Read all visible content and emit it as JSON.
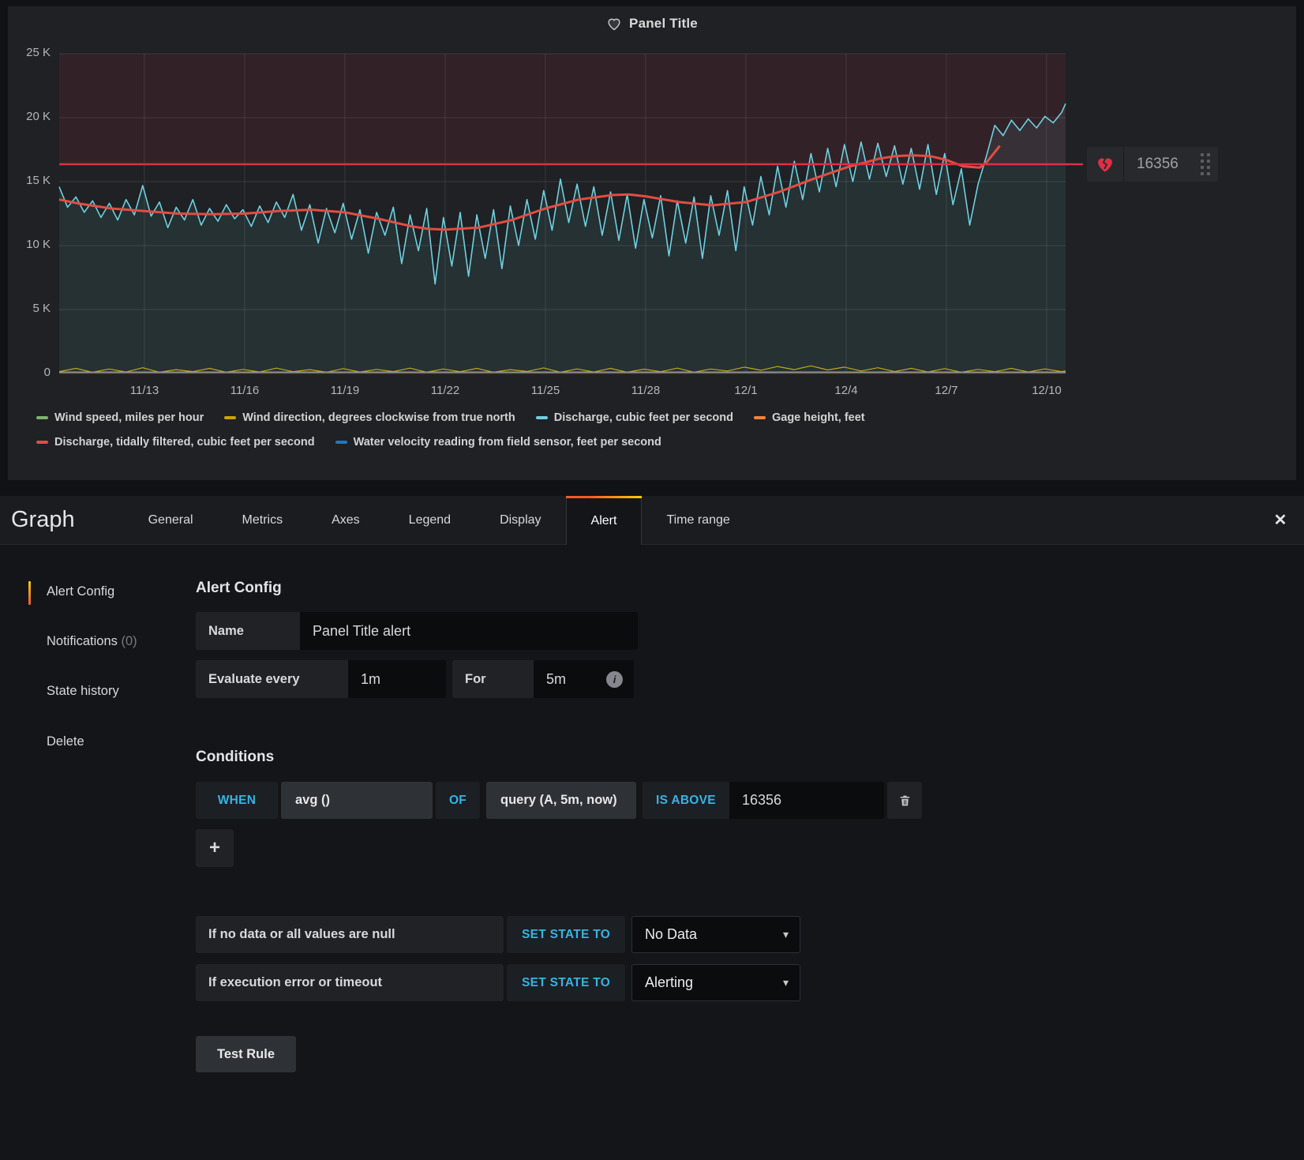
{
  "panel": {
    "title": "Panel Title"
  },
  "chart_data": {
    "type": "line",
    "title": "Panel Title",
    "x_axis": {
      "ticks": [
        "11/13",
        "11/16",
        "11/19",
        "11/22",
        "11/25",
        "11/28",
        "12/1",
        "12/4",
        "12/7",
        "12/10"
      ],
      "tick_days": [
        3,
        6,
        9,
        12,
        15,
        18,
        21,
        24,
        27,
        30
      ],
      "domain_days": [
        0.45,
        30.57
      ]
    },
    "y_axis": {
      "ticks": [
        "0",
        "5 K",
        "10 K",
        "15 K",
        "20 K",
        "25 K"
      ],
      "values": [
        0,
        5,
        10,
        15,
        20,
        25
      ],
      "ylim": [
        0,
        25
      ]
    },
    "unit": "K (thousands)",
    "grid": true,
    "legend_position": "bottom",
    "threshold": {
      "value": 16.356,
      "label": "16356",
      "color": "#e02f44"
    },
    "series": [
      {
        "name": "Wind speed, miles per hour",
        "color": "#7eb26d",
        "width": 1.2,
        "points": [
          [
            0.45,
            0.08
          ],
          [
            30.57,
            0.08
          ]
        ]
      },
      {
        "name": "Wind direction, degrees clockwise from true north",
        "color": "#cca300",
        "width": 1.2,
        "points": [
          [
            0.45,
            0.15
          ],
          [
            0.95,
            0.4
          ],
          [
            1.45,
            0.1
          ],
          [
            1.95,
            0.35
          ],
          [
            2.45,
            0.12
          ],
          [
            2.95,
            0.45
          ],
          [
            3.45,
            0.1
          ],
          [
            3.95,
            0.3
          ],
          [
            4.45,
            0.15
          ],
          [
            4.95,
            0.4
          ],
          [
            5.45,
            0.1
          ],
          [
            5.95,
            0.32
          ],
          [
            6.45,
            0.12
          ],
          [
            6.95,
            0.42
          ],
          [
            7.45,
            0.14
          ],
          [
            7.95,
            0.3
          ],
          [
            8.45,
            0.1
          ],
          [
            8.95,
            0.38
          ],
          [
            9.45,
            0.12
          ],
          [
            9.95,
            0.32
          ],
          [
            10.45,
            0.15
          ],
          [
            10.95,
            0.42
          ],
          [
            11.45,
            0.1
          ],
          [
            11.95,
            0.35
          ],
          [
            12.45,
            0.14
          ],
          [
            12.95,
            0.4
          ],
          [
            13.45,
            0.1
          ],
          [
            13.95,
            0.3
          ],
          [
            14.45,
            0.16
          ],
          [
            14.95,
            0.44
          ],
          [
            15.45,
            0.1
          ],
          [
            15.95,
            0.36
          ],
          [
            16.45,
            0.12
          ],
          [
            16.95,
            0.4
          ],
          [
            17.45,
            0.1
          ],
          [
            17.95,
            0.34
          ],
          [
            18.45,
            0.14
          ],
          [
            18.95,
            0.42
          ],
          [
            19.45,
            0.1
          ],
          [
            19.95,
            0.35
          ],
          [
            20.45,
            0.2
          ],
          [
            20.95,
            0.5
          ],
          [
            21.45,
            0.25
          ],
          [
            21.95,
            0.55
          ],
          [
            22.45,
            0.3
          ],
          [
            22.95,
            0.6
          ],
          [
            23.45,
            0.28
          ],
          [
            23.95,
            0.5
          ],
          [
            24.45,
            0.2
          ],
          [
            24.95,
            0.45
          ],
          [
            25.45,
            0.15
          ],
          [
            25.95,
            0.4
          ],
          [
            26.45,
            0.12
          ],
          [
            26.95,
            0.38
          ],
          [
            27.45,
            0.1
          ],
          [
            27.95,
            0.32
          ],
          [
            28.45,
            0.14
          ],
          [
            28.95,
            0.4
          ],
          [
            29.45,
            0.12
          ],
          [
            29.95,
            0.36
          ],
          [
            30.45,
            0.15
          ],
          [
            30.57,
            0.2
          ]
        ]
      },
      {
        "name": "Discharge, cubic feet per second",
        "color": "#6ed0e0",
        "width": 1.6,
        "fill": true,
        "points": [
          [
            0.45,
            14.6
          ],
          [
            0.7,
            13.0
          ],
          [
            0.95,
            13.8
          ],
          [
            1.2,
            12.6
          ],
          [
            1.45,
            13.5
          ],
          [
            1.7,
            12.2
          ],
          [
            1.95,
            13.3
          ],
          [
            2.2,
            12.0
          ],
          [
            2.45,
            13.6
          ],
          [
            2.7,
            12.4
          ],
          [
            2.95,
            14.7
          ],
          [
            3.2,
            12.3
          ],
          [
            3.45,
            13.4
          ],
          [
            3.7,
            11.4
          ],
          [
            3.95,
            13.0
          ],
          [
            4.2,
            12.0
          ],
          [
            4.45,
            13.6
          ],
          [
            4.7,
            11.6
          ],
          [
            4.95,
            12.9
          ],
          [
            5.2,
            11.9
          ],
          [
            5.45,
            13.2
          ],
          [
            5.7,
            12.1
          ],
          [
            5.95,
            12.8
          ],
          [
            6.2,
            11.5
          ],
          [
            6.45,
            13.1
          ],
          [
            6.7,
            11.8
          ],
          [
            6.95,
            13.4
          ],
          [
            7.2,
            12.2
          ],
          [
            7.45,
            14.0
          ],
          [
            7.7,
            11.2
          ],
          [
            7.95,
            13.2
          ],
          [
            8.2,
            10.2
          ],
          [
            8.45,
            12.9
          ],
          [
            8.7,
            11.0
          ],
          [
            8.95,
            13.3
          ],
          [
            9.2,
            10.5
          ],
          [
            9.45,
            12.8
          ],
          [
            9.7,
            9.4
          ],
          [
            9.95,
            12.6
          ],
          [
            10.2,
            10.8
          ],
          [
            10.45,
            13.0
          ],
          [
            10.7,
            8.6
          ],
          [
            10.95,
            12.4
          ],
          [
            11.2,
            9.6
          ],
          [
            11.45,
            12.9
          ],
          [
            11.7,
            7.0
          ],
          [
            11.95,
            12.2
          ],
          [
            12.2,
            8.4
          ],
          [
            12.45,
            12.6
          ],
          [
            12.7,
            7.6
          ],
          [
            12.95,
            12.4
          ],
          [
            13.2,
            9.0
          ],
          [
            13.45,
            12.8
          ],
          [
            13.7,
            8.2
          ],
          [
            13.95,
            13.1
          ],
          [
            14.2,
            10.0
          ],
          [
            14.45,
            13.6
          ],
          [
            14.7,
            10.5
          ],
          [
            14.95,
            14.3
          ],
          [
            15.2,
            11.2
          ],
          [
            15.45,
            15.2
          ],
          [
            15.7,
            11.8
          ],
          [
            15.95,
            14.8
          ],
          [
            16.2,
            11.5
          ],
          [
            16.45,
            14.6
          ],
          [
            16.7,
            10.8
          ],
          [
            16.95,
            14.2
          ],
          [
            17.2,
            10.4
          ],
          [
            17.45,
            14.0
          ],
          [
            17.7,
            9.8
          ],
          [
            17.95,
            13.6
          ],
          [
            18.2,
            10.6
          ],
          [
            18.45,
            13.9
          ],
          [
            18.7,
            9.2
          ],
          [
            18.95,
            13.5
          ],
          [
            19.2,
            10.2
          ],
          [
            19.45,
            13.8
          ],
          [
            19.7,
            9.0
          ],
          [
            19.95,
            13.9
          ],
          [
            20.2,
            10.8
          ],
          [
            20.45,
            14.3
          ],
          [
            20.7,
            9.6
          ],
          [
            20.95,
            14.6
          ],
          [
            21.2,
            11.6
          ],
          [
            21.45,
            15.4
          ],
          [
            21.7,
            12.4
          ],
          [
            21.95,
            16.2
          ],
          [
            22.2,
            13.0
          ],
          [
            22.45,
            16.6
          ],
          [
            22.7,
            13.6
          ],
          [
            22.95,
            17.2
          ],
          [
            23.2,
            14.2
          ],
          [
            23.45,
            17.6
          ],
          [
            23.7,
            14.6
          ],
          [
            23.95,
            17.9
          ],
          [
            24.2,
            15.0
          ],
          [
            24.45,
            18.1
          ],
          [
            24.7,
            15.2
          ],
          [
            24.95,
            18.0
          ],
          [
            25.2,
            15.4
          ],
          [
            25.45,
            17.8
          ],
          [
            25.7,
            14.8
          ],
          [
            25.95,
            17.6
          ],
          [
            26.2,
            14.4
          ],
          [
            26.45,
            17.9
          ],
          [
            26.7,
            14.0
          ],
          [
            26.95,
            17.2
          ],
          [
            27.2,
            13.2
          ],
          [
            27.45,
            16.0
          ],
          [
            27.7,
            11.6
          ],
          [
            27.95,
            14.8
          ],
          [
            28.2,
            17.0
          ],
          [
            28.45,
            19.4
          ],
          [
            28.7,
            18.6
          ],
          [
            28.95,
            19.8
          ],
          [
            29.2,
            19.0
          ],
          [
            29.45,
            19.9
          ],
          [
            29.7,
            19.2
          ],
          [
            29.95,
            20.1
          ],
          [
            30.2,
            19.6
          ],
          [
            30.45,
            20.4
          ],
          [
            30.57,
            21.1
          ]
        ]
      },
      {
        "name": "Gage height, feet",
        "color": "#ef843c",
        "width": 1.2,
        "points": [
          [
            0.45,
            0.12
          ],
          [
            30.57,
            0.12
          ]
        ]
      },
      {
        "name": "Discharge, tidally filtered, cubic feet per second",
        "color": "#e24d42",
        "width": 3,
        "points": [
          [
            0.45,
            13.6
          ],
          [
            1,
            13.3
          ],
          [
            2,
            12.9
          ],
          [
            3,
            12.7
          ],
          [
            4,
            12.5
          ],
          [
            5,
            12.45
          ],
          [
            6,
            12.5
          ],
          [
            7,
            12.7
          ],
          [
            8,
            12.8
          ],
          [
            9,
            12.6
          ],
          [
            10,
            12.1
          ],
          [
            11,
            11.5
          ],
          [
            11.5,
            11.3
          ],
          [
            12,
            11.25
          ],
          [
            13,
            11.4
          ],
          [
            14,
            12.0
          ],
          [
            15,
            12.9
          ],
          [
            16,
            13.6
          ],
          [
            17,
            13.95
          ],
          [
            17.5,
            14.0
          ],
          [
            18,
            13.85
          ],
          [
            19,
            13.4
          ],
          [
            20,
            13.15
          ],
          [
            21,
            13.4
          ],
          [
            22,
            14.2
          ],
          [
            23,
            15.2
          ],
          [
            24,
            16.1
          ],
          [
            25,
            16.8
          ],
          [
            25.5,
            17.0
          ],
          [
            26,
            17.05
          ],
          [
            26.5,
            17.0
          ],
          [
            27,
            16.7
          ],
          [
            27.5,
            16.2
          ],
          [
            28,
            16.1
          ],
          [
            28.2,
            16.5
          ],
          [
            28.45,
            17.3
          ],
          [
            28.6,
            17.8
          ]
        ]
      },
      {
        "name": "Water velocity reading from field sensor, feet per second",
        "color": "#1f78c1",
        "width": 1.2,
        "points": [
          [
            0.45,
            0.04
          ],
          [
            30.57,
            0.04
          ]
        ]
      }
    ]
  },
  "editor": {
    "title": "Graph",
    "tabs": [
      "General",
      "Metrics",
      "Axes",
      "Legend",
      "Display",
      "Alert",
      "Time range"
    ],
    "active_tab": "Alert",
    "icons": {
      "close": "✕",
      "add": "+",
      "info": "i",
      "caret": "▾"
    },
    "sidebar": {
      "items": [
        {
          "label": "Alert Config"
        },
        {
          "label": "Notifications",
          "count_suffix": "(0)"
        },
        {
          "label": "State history"
        },
        {
          "label": "Delete"
        }
      ]
    },
    "alert_config": {
      "heading": "Alert Config",
      "name_label": "Name",
      "name_value": "Panel Title alert",
      "evaluate_label": "Evaluate every",
      "evaluate_value": "1m",
      "for_label": "For",
      "for_value": "5m"
    },
    "conditions": {
      "heading": "Conditions",
      "when": "WHEN",
      "aggregation": "avg ()",
      "of": "OF",
      "query": "query (A, 5m, now)",
      "operator": "IS ABOVE",
      "value": "16356"
    },
    "state_rules": [
      {
        "label": "If no data or all values are null",
        "keyword": "SET STATE TO",
        "value": "No Data"
      },
      {
        "label": "If execution error or timeout",
        "keyword": "SET STATE TO",
        "value": "Alerting"
      }
    ],
    "test_rule_label": "Test Rule"
  }
}
